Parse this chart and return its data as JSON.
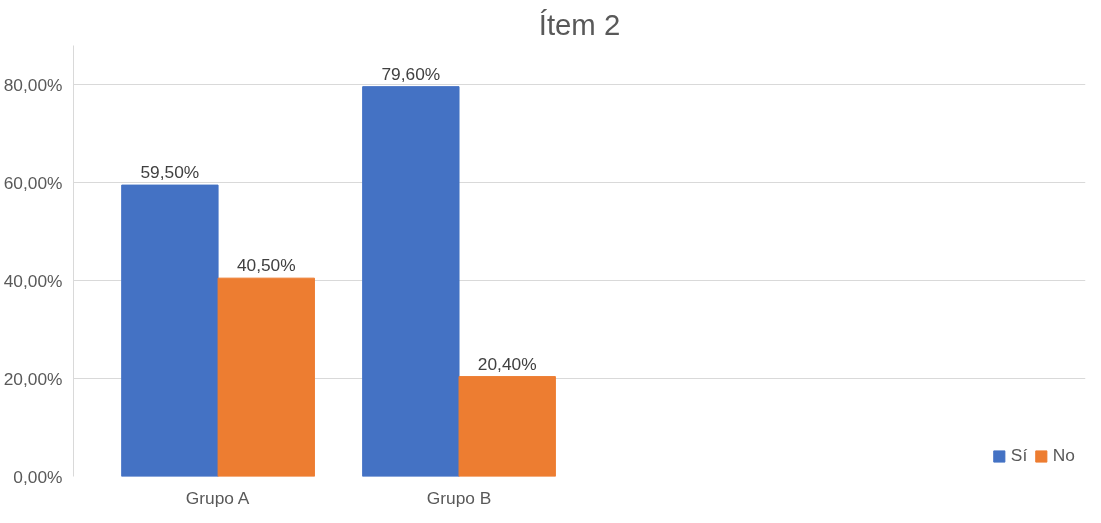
{
  "chart_data": {
    "type": "bar",
    "title": "Ítem 2",
    "categories": [
      "Grupo A",
      "Grupo B",
      null,
      null
    ],
    "series": [
      {
        "name": "Sí",
        "color": "#4472c4",
        "values": [
          59.5,
          79.6,
          null,
          null
        ],
        "value_labels": [
          "59,50%",
          "79,60%",
          null,
          null
        ]
      },
      {
        "name": "No",
        "color": "#ed7d31",
        "values": [
          40.5,
          20.4,
          null,
          null
        ],
        "value_labels": [
          "40,50%",
          "20,40%",
          null,
          null
        ]
      }
    ],
    "ylim": [
      0,
      88
    ],
    "yticks": [
      {
        "value": 0,
        "label": "0,00%"
      },
      {
        "value": 20,
        "label": "20,00%"
      },
      {
        "value": 40,
        "label": "40,00%"
      },
      {
        "value": 60,
        "label": "60,00%"
      },
      {
        "value": 80,
        "label": "80,00%"
      }
    ],
    "grid": "y",
    "legend": "bottom"
  }
}
